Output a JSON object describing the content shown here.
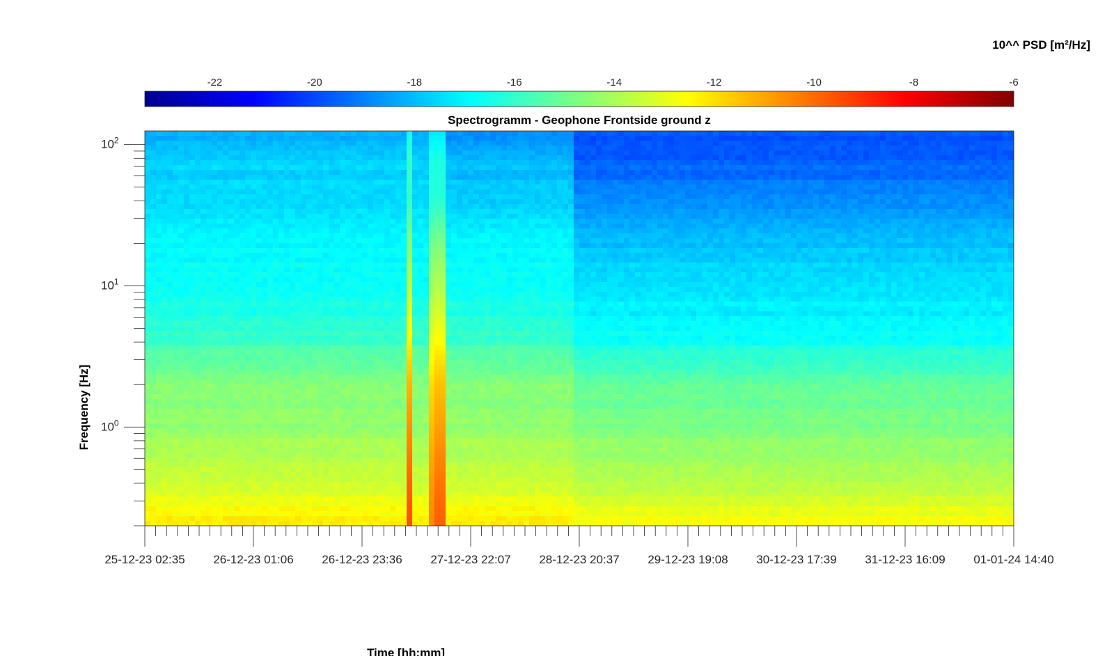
{
  "chart_data": {
    "type": "heatmap",
    "title": "Spectrogramm - Geophone Frontside ground z",
    "xlabel": "Time [hh:mm]",
    "ylabel": "Frequency [Hz]",
    "x_ticks": [
      "25-12-23 02:35",
      "26-12-23 01:06",
      "26-12-23 23:36",
      "27-12-23 22:07",
      "28-12-23 20:37",
      "29-12-23 19:08",
      "30-12-23 17:39",
      "31-12-23 16:09",
      "01-01-24 14:40"
    ],
    "y_scale": "log",
    "y_ticks": [
      {
        "base": "10",
        "exp": "0",
        "value": 1
      },
      {
        "base": "10",
        "exp": "1",
        "value": 10
      },
      {
        "base": "10",
        "exp": "2",
        "value": 100
      }
    ],
    "ylim": [
      0.2,
      125
    ],
    "colorbar": {
      "label": "10^^ PSD [m²/Hz]",
      "ticks": [
        "-22",
        "-20",
        "-18",
        "-16",
        "-14",
        "-12",
        "-10",
        "-8",
        "-6"
      ],
      "range": [
        -23.4,
        -6
      ],
      "colormap": "jet"
    },
    "spectral_profile": {
      "log10_freq_hz": [
        -0.7,
        -0.5,
        -0.3,
        0.0,
        0.3,
        0.6,
        0.8,
        1.0,
        1.3,
        1.6,
        1.9,
        2.1
      ],
      "log10_psd_early": [
        -12.2,
        -12.9,
        -13.6,
        -14.3,
        -14.6,
        -15.8,
        -16.4,
        -16.7,
        -17.0,
        -17.6,
        -17.6,
        -18.3
      ],
      "log10_psd_late": [
        -12.6,
        -13.3,
        -14.0,
        -14.7,
        -15.2,
        -16.6,
        -17.1,
        -17.3,
        -18.0,
        -18.9,
        -19.6,
        -19.8
      ]
    },
    "events": [
      {
        "label": "broadband burst",
        "x_fraction": 0.305,
        "peak_log10_psd": -9.5
      },
      {
        "label": "broadband burst",
        "x_fraction": 0.332,
        "peak_log10_psd": -10.5
      },
      {
        "label": "broadband burst",
        "x_fraction": 0.338,
        "peak_log10_psd": -9.8
      }
    ]
  }
}
